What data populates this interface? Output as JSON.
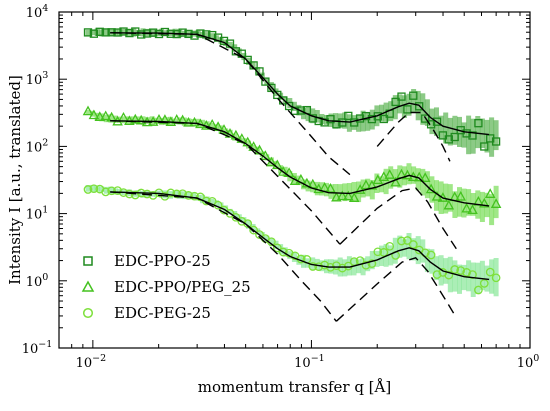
{
  "chart_data": {
    "type": "scatter",
    "title": "",
    "xlabel": "momentum transfer q [Å]",
    "ylabel": "Intensity I [a.u., translated]",
    "xscale": "log",
    "yscale": "log",
    "xlim": [
      0.007,
      1.0
    ],
    "ylim": [
      0.1,
      10000
    ],
    "x_ticks": [
      {
        "value": 0.01,
        "base": "10",
        "exp": "−2"
      },
      {
        "value": 0.1,
        "base": "10",
        "exp": "−1"
      },
      {
        "value": 1,
        "base": "10",
        "exp": "0"
      }
    ],
    "y_ticks": [
      {
        "value": 0.1,
        "base": "10",
        "exp": "−1"
      },
      {
        "value": 1,
        "base": "10",
        "exp": "0"
      },
      {
        "value": 10,
        "base": "10",
        "exp": "1"
      },
      {
        "value": 100,
        "base": "10",
        "exp": "2"
      },
      {
        "value": 1000,
        "base": "10",
        "exp": "3"
      },
      {
        "value": 10000,
        "base": "10",
        "exp": "4"
      }
    ],
    "grid": false,
    "legend_position": "bottom-left",
    "series": [
      {
        "name": "EDC-PPO-25",
        "marker": "square",
        "color": "#1f8a1f",
        "band_color": "#2e9e22",
        "points": [
          [
            0.0095,
            5000
          ],
          [
            0.011,
            4950
          ],
          [
            0.013,
            4950
          ],
          [
            0.016,
            4950
          ],
          [
            0.02,
            4900
          ],
          [
            0.025,
            4850
          ],
          [
            0.03,
            4700
          ],
          [
            0.035,
            4300
          ],
          [
            0.04,
            3600
          ],
          [
            0.045,
            2800
          ],
          [
            0.05,
            2050
          ],
          [
            0.055,
            1500
          ],
          [
            0.06,
            1080
          ],
          [
            0.07,
            620
          ],
          [
            0.08,
            420
          ],
          [
            0.09,
            330
          ],
          [
            0.1,
            290
          ],
          [
            0.12,
            240
          ],
          [
            0.14,
            230
          ],
          [
            0.16,
            235
          ],
          [
            0.18,
            250
          ],
          [
            0.2,
            290
          ],
          [
            0.23,
            360
          ],
          [
            0.26,
            420
          ],
          [
            0.28,
            445
          ],
          [
            0.3,
            430
          ],
          [
            0.33,
            340
          ],
          [
            0.36,
            240
          ],
          [
            0.4,
            185
          ],
          [
            0.45,
            165
          ],
          [
            0.5,
            150
          ],
          [
            0.6,
            145
          ],
          [
            0.7,
            140
          ]
        ],
        "fit": [
          [
            0.012,
            4900
          ],
          [
            0.02,
            4850
          ],
          [
            0.03,
            4650
          ],
          [
            0.04,
            3500
          ],
          [
            0.05,
            2000
          ],
          [
            0.06,
            1050
          ],
          [
            0.07,
            600
          ],
          [
            0.08,
            400
          ],
          [
            0.1,
            285
          ],
          [
            0.12,
            240
          ],
          [
            0.15,
            230
          ],
          [
            0.2,
            285
          ],
          [
            0.25,
            390
          ],
          [
            0.28,
            440
          ],
          [
            0.31,
            410
          ],
          [
            0.35,
            270
          ],
          [
            0.4,
            200
          ],
          [
            0.5,
            165
          ],
          [
            0.65,
            150
          ]
        ],
        "asymptote_low_q": [
          [
            0.012,
            4900
          ],
          [
            0.03,
            4650
          ],
          [
            0.05,
            2000
          ],
          [
            0.07,
            520
          ],
          [
            0.1,
            140
          ],
          [
            0.12,
            70
          ],
          [
            0.15,
            38
          ]
        ],
        "asymptote_high_q": [
          [
            0.2,
            100
          ],
          [
            0.25,
            230
          ],
          [
            0.28,
            320
          ],
          [
            0.32,
            320
          ],
          [
            0.36,
            180
          ],
          [
            0.4,
            100
          ],
          [
            0.43,
            60
          ]
        ]
      },
      {
        "name": "EDC-PPO/PEG_25",
        "marker": "triangle",
        "color": "#44c21f",
        "band_color": "#52d326",
        "points": [
          [
            0.0095,
            320
          ],
          [
            0.011,
            270
          ],
          [
            0.013,
            250
          ],
          [
            0.016,
            245
          ],
          [
            0.02,
            240
          ],
          [
            0.025,
            235
          ],
          [
            0.03,
            225
          ],
          [
            0.035,
            200
          ],
          [
            0.04,
            170
          ],
          [
            0.05,
            115
          ],
          [
            0.06,
            75
          ],
          [
            0.07,
            50
          ],
          [
            0.08,
            36
          ],
          [
            0.09,
            29
          ],
          [
            0.1,
            25
          ],
          [
            0.12,
            21
          ],
          [
            0.14,
            20
          ],
          [
            0.16,
            21
          ],
          [
            0.18,
            23
          ],
          [
            0.2,
            26
          ],
          [
            0.23,
            32
          ],
          [
            0.26,
            37
          ],
          [
            0.28,
            38
          ],
          [
            0.3,
            37
          ],
          [
            0.33,
            29
          ],
          [
            0.36,
            21
          ],
          [
            0.4,
            17
          ],
          [
            0.45,
            15
          ],
          [
            0.5,
            14
          ],
          [
            0.6,
            13.5
          ],
          [
            0.7,
            13
          ]
        ],
        "fit": [
          [
            0.012,
            240
          ],
          [
            0.02,
            235
          ],
          [
            0.03,
            220
          ],
          [
            0.04,
            165
          ],
          [
            0.05,
            110
          ],
          [
            0.06,
            72
          ],
          [
            0.07,
            48
          ],
          [
            0.08,
            35
          ],
          [
            0.1,
            24
          ],
          [
            0.12,
            20.5
          ],
          [
            0.15,
            20
          ],
          [
            0.2,
            25
          ],
          [
            0.25,
            33
          ],
          [
            0.28,
            37
          ],
          [
            0.31,
            34
          ],
          [
            0.35,
            23
          ],
          [
            0.4,
            17
          ],
          [
            0.5,
            14.5
          ],
          [
            0.65,
            13
          ]
        ],
        "asymptote_low_q": [
          [
            0.012,
            240
          ],
          [
            0.03,
            220
          ],
          [
            0.05,
            110
          ],
          [
            0.07,
            36
          ],
          [
            0.1,
            11
          ],
          [
            0.12,
            5.5
          ],
          [
            0.135,
            3.5
          ]
        ],
        "asymptote_high_q": [
          [
            0.135,
            3.5
          ],
          [
            0.2,
            12
          ],
          [
            0.26,
            22
          ],
          [
            0.3,
            24
          ],
          [
            0.34,
            15
          ],
          [
            0.4,
            6
          ],
          [
            0.46,
            3
          ]
        ]
      },
      {
        "name": "EDC-PEG-25",
        "marker": "circle",
        "color": "#7de03a",
        "band_color": "#66e07a",
        "points": [
          [
            0.0095,
            24
          ],
          [
            0.011,
            23
          ],
          [
            0.013,
            21
          ],
          [
            0.016,
            20
          ],
          [
            0.02,
            19.5
          ],
          [
            0.025,
            19
          ],
          [
            0.03,
            17.5
          ],
          [
            0.035,
            15
          ],
          [
            0.04,
            12
          ],
          [
            0.05,
            7.5
          ],
          [
            0.06,
            4.6
          ],
          [
            0.07,
            3.2
          ],
          [
            0.08,
            2.4
          ],
          [
            0.09,
            2.0
          ],
          [
            0.1,
            1.8
          ],
          [
            0.12,
            1.65
          ],
          [
            0.14,
            1.6
          ],
          [
            0.16,
            1.65
          ],
          [
            0.18,
            1.8
          ],
          [
            0.2,
            2.1
          ],
          [
            0.23,
            2.6
          ],
          [
            0.26,
            3.0
          ],
          [
            0.28,
            3.1
          ],
          [
            0.3,
            3.0
          ],
          [
            0.33,
            2.4
          ],
          [
            0.36,
            1.7
          ],
          [
            0.4,
            1.35
          ],
          [
            0.45,
            1.2
          ],
          [
            0.5,
            1.15
          ],
          [
            0.6,
            1.1
          ],
          [
            0.7,
            1.05
          ]
        ],
        "fit": [
          [
            0.012,
            21
          ],
          [
            0.02,
            20
          ],
          [
            0.03,
            17
          ],
          [
            0.04,
            11.5
          ],
          [
            0.05,
            7
          ],
          [
            0.06,
            4.4
          ],
          [
            0.07,
            3.0
          ],
          [
            0.08,
            2.3
          ],
          [
            0.1,
            1.75
          ],
          [
            0.12,
            1.6
          ],
          [
            0.15,
            1.6
          ],
          [
            0.2,
            2.05
          ],
          [
            0.25,
            2.8
          ],
          [
            0.28,
            3.1
          ],
          [
            0.31,
            2.8
          ],
          [
            0.35,
            1.9
          ],
          [
            0.4,
            1.4
          ],
          [
            0.5,
            1.15
          ],
          [
            0.65,
            1.05
          ]
        ],
        "asymptote_low_q": [
          [
            0.012,
            21
          ],
          [
            0.03,
            17
          ],
          [
            0.05,
            7
          ],
          [
            0.07,
            2.5
          ],
          [
            0.09,
            1.0
          ],
          [
            0.11,
            0.5
          ],
          [
            0.13,
            0.25
          ]
        ],
        "asymptote_high_q": [
          [
            0.13,
            0.25
          ],
          [
            0.2,
            0.9
          ],
          [
            0.26,
            1.9
          ],
          [
            0.3,
            2.2
          ],
          [
            0.34,
            1.4
          ],
          [
            0.4,
            0.6
          ],
          [
            0.45,
            0.32
          ]
        ]
      }
    ]
  }
}
